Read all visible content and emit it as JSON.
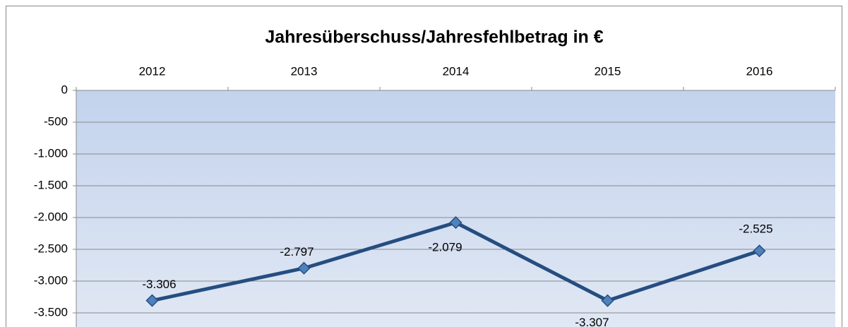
{
  "chart_data": {
    "type": "line",
    "title": "Jahresüberschuss/Jahresfehlbetrag in €",
    "categories": [
      "2012",
      "2013",
      "2014",
      "2015",
      "2016"
    ],
    "series": [
      {
        "name": "Jahresüberschuss/Jahresfehlbetrag",
        "color": "#254d80",
        "marker_color": "#4f81bd",
        "values": [
          -3306,
          -2797,
          -2079,
          -3307,
          -2525
        ],
        "value_labels": [
          "-3.306",
          "-2.797",
          "-2.079",
          "-3.307",
          "-2.525"
        ]
      }
    ],
    "ylim": [
      -3500,
      0
    ],
    "yticks": [
      0,
      -500,
      {
        "value": -1000,
        "label": "-1.000"
      },
      {
        "value": -1500,
        "label": "-1.500"
      },
      {
        "value": -2000,
        "label": "-2.000"
      },
      {
        "value": -2500,
        "label": "-2.500"
      },
      {
        "value": -3000,
        "label": "-3.000"
      },
      {
        "value": -3500,
        "label": "-3.500"
      }
    ],
    "grid": true
  }
}
